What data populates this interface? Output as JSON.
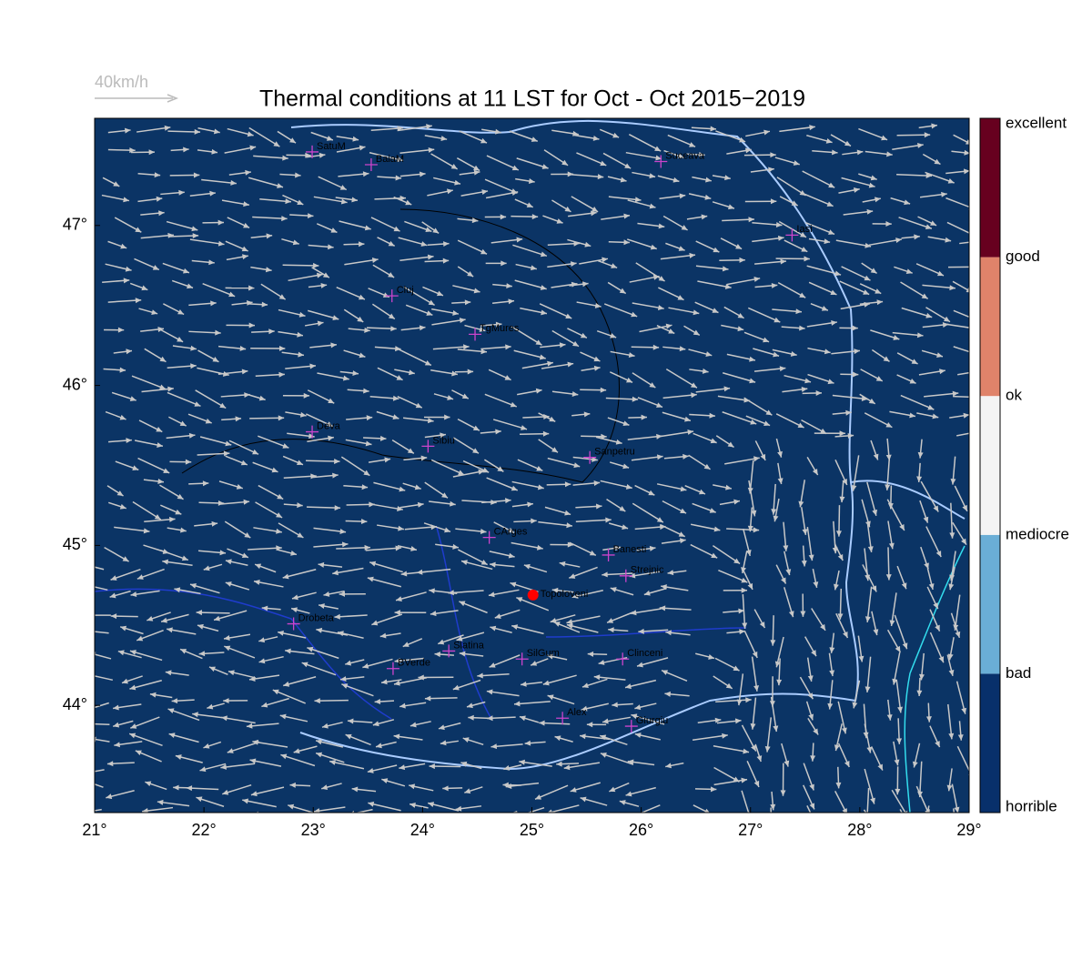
{
  "title": "Thermal conditions at 11 LST for Oct - Oct  2015−2019",
  "wind_scale": "40km/h",
  "xlim": [
    21,
    29
  ],
  "ylim": [
    43.33,
    47.67
  ],
  "xticks": [
    {
      "value": 21,
      "label": "21°"
    },
    {
      "value": 22,
      "label": "22°"
    },
    {
      "value": 23,
      "label": "23°"
    },
    {
      "value": 24,
      "label": "24°"
    },
    {
      "value": 25,
      "label": "25°"
    },
    {
      "value": 26,
      "label": "26°"
    },
    {
      "value": 27,
      "label": "27°"
    },
    {
      "value": 28,
      "label": "28°"
    },
    {
      "value": 29,
      "label": "29°"
    }
  ],
  "yticks": [
    {
      "value": 44,
      "label": "44°"
    },
    {
      "value": 45,
      "label": "45°"
    },
    {
      "value": 46,
      "label": "46°"
    },
    {
      "value": 47,
      "label": "47°"
    }
  ],
  "background_color": "#0b3465",
  "colorbar": {
    "labels": [
      "horrible",
      "bad",
      "mediocre",
      "ok",
      "good",
      "excellent"
    ],
    "colors": [
      "#08306b",
      "#6aaed6",
      "#f4f4f4",
      "#e0836a",
      "#67001f"
    ]
  },
  "stations": [
    {
      "name": "SatuM",
      "lon": 22.99,
      "lat": 47.46
    },
    {
      "name": "BaiaM",
      "lon": 23.53,
      "lat": 47.38
    },
    {
      "name": "Suceava",
      "lon": 26.18,
      "lat": 47.4
    },
    {
      "name": "Iasi",
      "lon": 27.38,
      "lat": 46.94
    },
    {
      "name": "Cluj",
      "lon": 23.72,
      "lat": 46.56
    },
    {
      "name": "TgMures",
      "lon": 24.48,
      "lat": 46.32
    },
    {
      "name": "Deva",
      "lon": 22.99,
      "lat": 45.71
    },
    {
      "name": "Sibiu",
      "lon": 24.05,
      "lat": 45.62
    },
    {
      "name": "Sanpetru",
      "lon": 25.53,
      "lat": 45.55
    },
    {
      "name": "CArges",
      "lon": 24.61,
      "lat": 45.05
    },
    {
      "name": "Banesti",
      "lon": 25.7,
      "lat": 44.94
    },
    {
      "name": "Strejnic",
      "lon": 25.86,
      "lat": 44.81
    },
    {
      "name": "Drobeta",
      "lon": 22.82,
      "lat": 44.51
    },
    {
      "name": "Slatina",
      "lon": 24.24,
      "lat": 44.34
    },
    {
      "name": "SilGum",
      "lon": 24.91,
      "lat": 44.29
    },
    {
      "name": "Clinceni",
      "lon": 25.83,
      "lat": 44.29
    },
    {
      "name": "BVerde",
      "lon": 23.73,
      "lat": 44.23
    },
    {
      "name": "Alex",
      "lon": 25.28,
      "lat": 43.92
    },
    {
      "name": "Giurgiu",
      "lon": 25.91,
      "lat": 43.87
    }
  ],
  "site": {
    "name": "Topoloveni",
    "lon": 25.01,
    "lat": 44.69,
    "color": "#ff0000"
  }
}
